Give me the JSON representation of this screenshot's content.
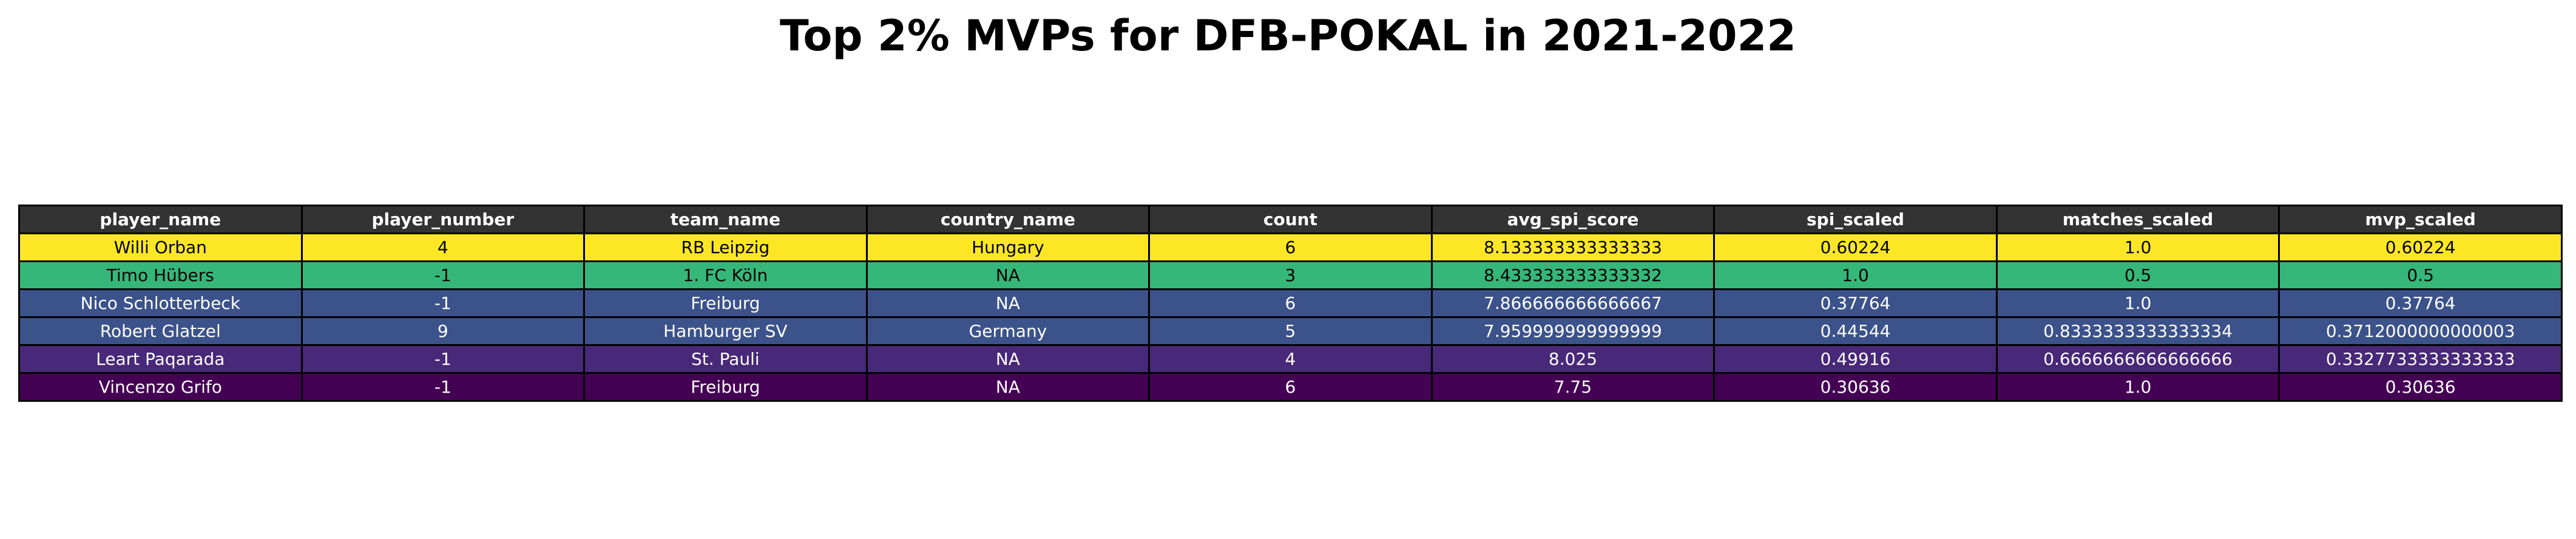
{
  "chart_data": {
    "type": "table",
    "title": "Top 2% MVPs for DFB-POKAL in 2021-2022",
    "header_color": "#333333",
    "header_text_color": "#ffffff",
    "columns": [
      "player_name",
      "player_number",
      "team_name",
      "country_name",
      "count",
      "avg_spi_score",
      "spi_scaled",
      "matches_scaled",
      "mvp_scaled"
    ],
    "rows": [
      {
        "cells": [
          "Willi Orban",
          "4",
          "RB Leipzig",
          "Hungary",
          "6",
          "8.133333333333333",
          "0.60224",
          "1.0",
          "0.60224"
        ],
        "color": "#fde725",
        "text_color": "#000000"
      },
      {
        "cells": [
          "Timo Hübers",
          "-1",
          "1. FC Köln",
          "NA",
          "3",
          "8.433333333333332",
          "1.0",
          "0.5",
          "0.5"
        ],
        "color": "#35b779",
        "text_color": "#000000"
      },
      {
        "cells": [
          "Nico Schlotterbeck",
          "-1",
          "Freiburg",
          "NA",
          "6",
          "7.866666666666667",
          "0.37764",
          "1.0",
          "0.37764"
        ],
        "color": "#3b528b",
        "text_color": "#ffffff"
      },
      {
        "cells": [
          "Robert Glatzel",
          "9",
          "Hamburger SV",
          "Germany",
          "5",
          "7.959999999999999",
          "0.44544",
          "0.8333333333333334",
          "0.3712000000000003"
        ],
        "color": "#3b528b",
        "text_color": "#ffffff"
      },
      {
        "cells": [
          "Leart Paqarada",
          "-1",
          "St. Pauli",
          "NA",
          "4",
          "8.025",
          "0.49916",
          "0.6666666666666666",
          "0.3327733333333333"
        ],
        "color": "#482878",
        "text_color": "#ffffff"
      },
      {
        "cells": [
          "Vincenzo Grifo",
          "-1",
          "Freiburg",
          "NA",
          "6",
          "7.75",
          "0.30636",
          "1.0",
          "0.30636"
        ],
        "color": "#440154",
        "text_color": "#ffffff"
      }
    ]
  }
}
